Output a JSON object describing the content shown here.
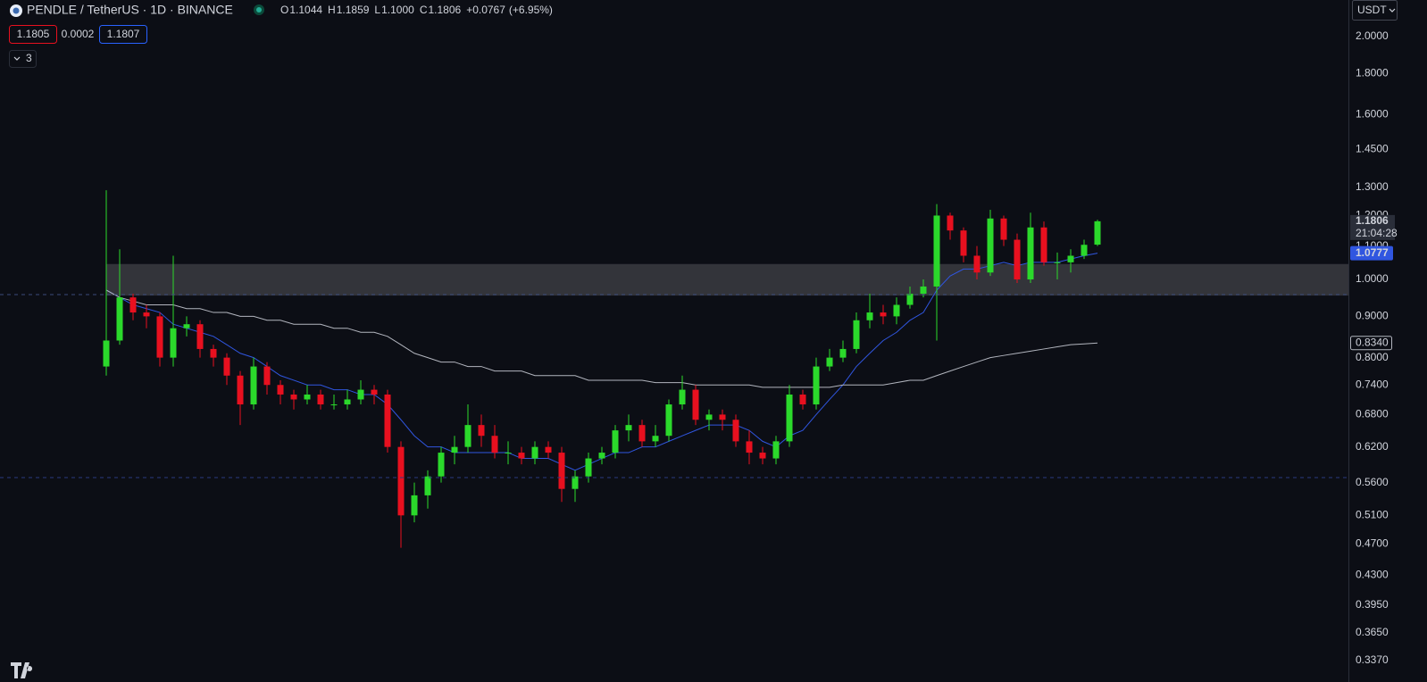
{
  "chart_data": {
    "type": "candlestick",
    "title": "PENDLE / TetherUS · 1D · BINANCE",
    "header_letters": [
      "O",
      "H",
      "L",
      "C"
    ],
    "header_values": [
      "1.1044",
      "1.1859",
      "1.1000",
      "1.1806"
    ],
    "change": "+0.0767",
    "change_pct": "(+6.95%)",
    "bid": 1.1805,
    "spread": 0.0002,
    "ask": 1.1807,
    "indicator_count": 3,
    "currency": "USDT",
    "countdown": "21:04:28",
    "log_scale": true,
    "grid": false,
    "ylim": [
      0.3285,
      2.22
    ],
    "yticks": [
      {
        "value": 2,
        "label": "2.0000"
      },
      {
        "value": 1.8,
        "label": "1.8000"
      },
      {
        "value": 1.6,
        "label": "1.6000"
      },
      {
        "value": 1.45,
        "label": "1.4500"
      },
      {
        "value": 1.3,
        "label": "1.3000"
      },
      {
        "value": 1.2,
        "label": "1.2000"
      },
      {
        "value": 1.1,
        "label": "1.1000"
      },
      {
        "value": 1,
        "label": "1.0000"
      },
      {
        "value": 0.9,
        "label": "0.9000"
      },
      {
        "value": 0.8,
        "label": "0.8000"
      },
      {
        "value": 0.74,
        "label": "0.7400"
      },
      {
        "value": 0.68,
        "label": "0.6800"
      },
      {
        "value": 0.62,
        "label": "0.6200"
      },
      {
        "value": 0.56,
        "label": "0.5600"
      },
      {
        "value": 0.51,
        "label": "0.5100"
      },
      {
        "value": 0.47,
        "label": "0.4700"
      },
      {
        "value": 0.43,
        "label": "0.4300"
      },
      {
        "value": 0.395,
        "label": "0.3950"
      },
      {
        "value": 0.365,
        "label": "0.3650"
      },
      {
        "value": 0.337,
        "label": "0.3370"
      }
    ],
    "value_area": [
      0.955,
      1.045
    ],
    "candles": {
      "up_color": "#2bd92b",
      "down_color": "#e8101f",
      "open": [
        0.78,
        0.84,
        0.95,
        0.91,
        0.9,
        0.8,
        0.87,
        0.88,
        0.82,
        0.8,
        0.76,
        0.7,
        0.78,
        0.74,
        0.72,
        0.71,
        0.72,
        0.7,
        0.7,
        0.71,
        0.73,
        0.72,
        0.62,
        0.51,
        0.54,
        0.57,
        0.61,
        0.62,
        0.66,
        0.64,
        0.61,
        0.61,
        0.6,
        0.62,
        0.61,
        0.55,
        0.57,
        0.6,
        0.61,
        0.65,
        0.66,
        0.63,
        0.64,
        0.7,
        0.73,
        0.67,
        0.68,
        0.67,
        0.63,
        0.61,
        0.6,
        0.63,
        0.72,
        0.7,
        0.78,
        0.8,
        0.82,
        0.89,
        0.91,
        0.9,
        0.93,
        0.96,
        0.98,
        1.2,
        1.15,
        1.07,
        1.02,
        1.19,
        1.12,
        1.0,
        1.16,
        1.05,
        1.05,
        1.07,
        1.1044
      ],
      "high": [
        1.29,
        1.09,
        0.96,
        0.93,
        0.91,
        1.07,
        0.9,
        0.89,
        0.83,
        0.81,
        0.77,
        0.8,
        0.79,
        0.75,
        0.73,
        0.74,
        0.73,
        0.72,
        0.73,
        0.75,
        0.74,
        0.73,
        0.63,
        0.56,
        0.58,
        0.62,
        0.64,
        0.7,
        0.68,
        0.66,
        0.63,
        0.62,
        0.63,
        0.63,
        0.62,
        0.58,
        0.61,
        0.62,
        0.66,
        0.68,
        0.67,
        0.66,
        0.71,
        0.76,
        0.74,
        0.69,
        0.69,
        0.68,
        0.65,
        0.62,
        0.64,
        0.74,
        0.73,
        0.8,
        0.82,
        0.84,
        0.91,
        0.96,
        0.93,
        0.95,
        0.98,
        1.0,
        1.24,
        1.21,
        1.16,
        1.1,
        1.22,
        1.2,
        1.14,
        1.21,
        1.18,
        1.08,
        1.09,
        1.12,
        1.1859
      ],
      "low": [
        0.76,
        0.83,
        0.89,
        0.87,
        0.78,
        0.78,
        0.85,
        0.8,
        0.78,
        0.74,
        0.66,
        0.69,
        0.72,
        0.7,
        0.69,
        0.7,
        0.69,
        0.69,
        0.69,
        0.7,
        0.7,
        0.61,
        0.465,
        0.5,
        0.52,
        0.56,
        0.59,
        0.61,
        0.62,
        0.6,
        0.59,
        0.59,
        0.59,
        0.6,
        0.53,
        0.53,
        0.56,
        0.59,
        0.6,
        0.63,
        0.62,
        0.62,
        0.63,
        0.69,
        0.66,
        0.65,
        0.65,
        0.62,
        0.59,
        0.59,
        0.59,
        0.62,
        0.69,
        0.69,
        0.77,
        0.79,
        0.81,
        0.87,
        0.88,
        0.88,
        0.92,
        0.95,
        0.84,
        1.12,
        1.05,
        1.0,
        1.01,
        1.1,
        0.99,
        0.99,
        1.04,
        1.0,
        1.02,
        1.06,
        1.1
      ],
      "close": [
        0.84,
        0.95,
        0.91,
        0.9,
        0.8,
        0.87,
        0.88,
        0.82,
        0.8,
        0.76,
        0.7,
        0.78,
        0.74,
        0.72,
        0.71,
        0.72,
        0.7,
        0.7,
        0.71,
        0.73,
        0.72,
        0.62,
        0.51,
        0.54,
        0.57,
        0.61,
        0.62,
        0.66,
        0.64,
        0.61,
        0.61,
        0.6,
        0.62,
        0.61,
        0.55,
        0.57,
        0.6,
        0.61,
        0.65,
        0.66,
        0.63,
        0.64,
        0.7,
        0.73,
        0.67,
        0.68,
        0.67,
        0.63,
        0.61,
        0.6,
        0.63,
        0.72,
        0.7,
        0.78,
        0.8,
        0.82,
        0.89,
        0.91,
        0.9,
        0.93,
        0.96,
        0.98,
        1.2,
        1.15,
        1.07,
        1.02,
        1.19,
        1.12,
        1.0,
        1.16,
        1.05,
        1.05,
        1.07,
        1.1039,
        1.1806
      ]
    },
    "lines": [
      {
        "color": "#3056e0",
        "values": [
          0.97,
          0.95,
          0.93,
          0.92,
          0.91,
          0.88,
          0.87,
          0.86,
          0.85,
          0.83,
          0.81,
          0.8,
          0.78,
          0.76,
          0.75,
          0.74,
          0.74,
          0.73,
          0.73,
          0.72,
          0.72,
          0.7,
          0.67,
          0.64,
          0.62,
          0.62,
          0.61,
          0.61,
          0.61,
          0.61,
          0.61,
          0.6,
          0.6,
          0.6,
          0.59,
          0.58,
          0.59,
          0.6,
          0.61,
          0.61,
          0.62,
          0.62,
          0.63,
          0.64,
          0.65,
          0.66,
          0.66,
          0.66,
          0.65,
          0.63,
          0.62,
          0.64,
          0.65,
          0.68,
          0.71,
          0.74,
          0.78,
          0.81,
          0.84,
          0.86,
          0.89,
          0.91,
          0.97,
          1.01,
          1.03,
          1.03,
          1.04,
          1.05,
          1.04,
          1.05,
          1.05,
          1.05,
          1.06,
          1.07,
          1.0777
        ]
      },
      {
        "color": "#b2b5be",
        "values": [
          0.97,
          0.95,
          0.94,
          0.93,
          0.93,
          0.93,
          0.92,
          0.92,
          0.91,
          0.91,
          0.9,
          0.9,
          0.89,
          0.89,
          0.88,
          0.88,
          0.88,
          0.87,
          0.87,
          0.86,
          0.86,
          0.85,
          0.83,
          0.81,
          0.8,
          0.79,
          0.79,
          0.78,
          0.78,
          0.77,
          0.77,
          0.77,
          0.76,
          0.76,
          0.76,
          0.76,
          0.75,
          0.75,
          0.75,
          0.75,
          0.75,
          0.745,
          0.745,
          0.745,
          0.74,
          0.74,
          0.74,
          0.74,
          0.74,
          0.735,
          0.735,
          0.735,
          0.735,
          0.735,
          0.735,
          0.74,
          0.74,
          0.74,
          0.74,
          0.745,
          0.75,
          0.75,
          0.76,
          0.77,
          0.78,
          0.79,
          0.8,
          0.805,
          0.81,
          0.815,
          0.82,
          0.825,
          0.83,
          0.832,
          0.834
        ],
        "value_labels": [
          null,
          null,
          null,
          null,
          null,
          null,
          null,
          null,
          null,
          null,
          null,
          null,
          null,
          null,
          null,
          null,
          null,
          null,
          null,
          null,
          null,
          null,
          null,
          null,
          null,
          null,
          null,
          null,
          null,
          null,
          null,
          null,
          null,
          null,
          null,
          null,
          null,
          null,
          null,
          null,
          null,
          null,
          null,
          null,
          null,
          null,
          null,
          null,
          null,
          null,
          null,
          null,
          null,
          null,
          null,
          null,
          null,
          null,
          null,
          null,
          null,
          null,
          null,
          null,
          null,
          null,
          null,
          null,
          null,
          null,
          null,
          null,
          null,
          null,
          "0.8340"
        ]
      }
    ]
  }
}
